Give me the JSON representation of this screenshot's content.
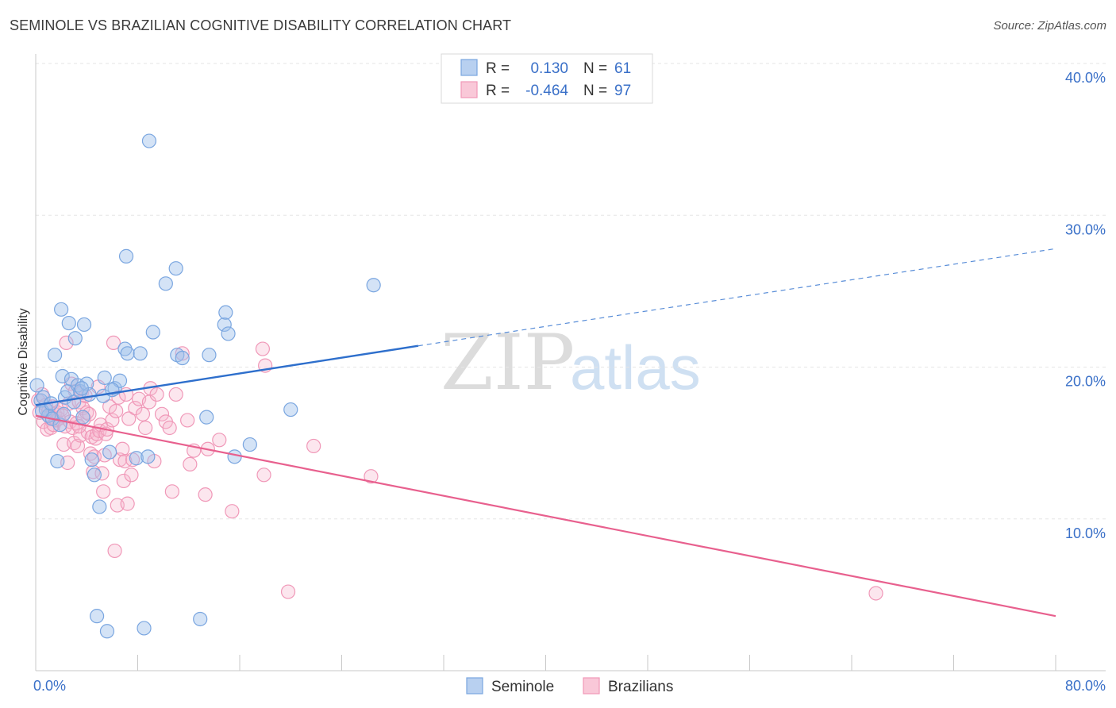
{
  "title": "SEMINOLE VS BRAZILIAN COGNITIVE DISABILITY CORRELATION CHART",
  "source": "Source: ZipAtlas.com",
  "watermark": {
    "zip": "ZIP",
    "atlas": "atlas"
  },
  "colors": {
    "seminole": "#7aa6e0",
    "brazilians": "#f098b8",
    "seminole_line": "#2e6fcc",
    "brazilians_line": "#e8608e",
    "tick": "#3a70c8"
  },
  "legend": {
    "rows": [
      {
        "r_label": "R =",
        "r_value": "0.130",
        "n_label": "N =",
        "n_value": "61"
      },
      {
        "r_label": "R =",
        "r_value": "-0.464",
        "n_label": "N =",
        "n_value": "97"
      }
    ]
  },
  "bottom_legend": [
    "Seminole",
    "Brazilians"
  ],
  "chart_data": {
    "type": "scatter",
    "title": "SEMINOLE VS BRAZILIAN COGNITIVE DISABILITY CORRELATION CHART",
    "xlabel": "",
    "ylabel": "Cognitive Disability",
    "xlim": [
      0,
      80
    ],
    "ylim": [
      0,
      40
    ],
    "x_tick_labels": [
      "0.0%",
      "80.0%"
    ],
    "y_tick_labels": [
      "10.0%",
      "20.0%",
      "30.0%",
      "40.0%"
    ],
    "y_ticks": [
      10,
      20,
      30,
      40
    ],
    "grid": true,
    "series": [
      {
        "name": "Seminole",
        "trend": {
          "x": [
            0,
            30
          ],
          "y": [
            17.5,
            21.4
          ],
          "dashed_to": [
            80,
            27.8
          ]
        },
        "points": [
          [
            0.1,
            18.8
          ],
          [
            0.4,
            17.8
          ],
          [
            0.6,
            18.0
          ],
          [
            0.8,
            17.2
          ],
          [
            1.0,
            16.8
          ],
          [
            1.3,
            16.6
          ],
          [
            1.5,
            20.8
          ],
          [
            1.7,
            13.8
          ],
          [
            1.9,
            16.2
          ],
          [
            2.0,
            23.8
          ],
          [
            2.1,
            19.4
          ],
          [
            2.3,
            18.0
          ],
          [
            2.5,
            18.4
          ],
          [
            2.6,
            22.9
          ],
          [
            2.8,
            19.2
          ],
          [
            3.0,
            17.7
          ],
          [
            3.1,
            21.9
          ],
          [
            3.3,
            18.8
          ],
          [
            3.5,
            18.4
          ],
          [
            3.7,
            16.7
          ],
          [
            3.8,
            22.8
          ],
          [
            4.0,
            18.9
          ],
          [
            4.2,
            18.2
          ],
          [
            4.4,
            13.9
          ],
          [
            4.6,
            12.9
          ],
          [
            4.8,
            3.6
          ],
          [
            5.0,
            10.8
          ],
          [
            5.3,
            18.1
          ],
          [
            5.4,
            19.3
          ],
          [
            5.6,
            2.6
          ],
          [
            5.8,
            14.4
          ],
          [
            6.2,
            18.6
          ],
          [
            6.6,
            19.1
          ],
          [
            7.0,
            21.2
          ],
          [
            7.1,
            27.3
          ],
          [
            7.2,
            20.9
          ],
          [
            7.9,
            14.0
          ],
          [
            8.2,
            20.9
          ],
          [
            8.5,
            2.8
          ],
          [
            8.8,
            14.1
          ],
          [
            8.9,
            34.9
          ],
          [
            9.2,
            22.3
          ],
          [
            10.2,
            25.5
          ],
          [
            11.0,
            26.5
          ],
          [
            11.1,
            20.8
          ],
          [
            11.5,
            20.6
          ],
          [
            12.9,
            3.4
          ],
          [
            13.4,
            16.7
          ],
          [
            13.6,
            20.8
          ],
          [
            14.8,
            22.8
          ],
          [
            14.9,
            23.6
          ],
          [
            15.1,
            22.2
          ],
          [
            15.6,
            14.1
          ],
          [
            16.8,
            14.9
          ],
          [
            20.0,
            17.2
          ],
          [
            26.5,
            25.4
          ],
          [
            0.5,
            17.1
          ],
          [
            1.2,
            17.6
          ],
          [
            2.2,
            16.9
          ],
          [
            3.6,
            18.6
          ],
          [
            6.0,
            18.5
          ]
        ]
      },
      {
        "name": "Brazilians",
        "trend": {
          "x": [
            0,
            80
          ],
          "y": [
            16.8,
            3.6
          ]
        },
        "points": [
          [
            0.2,
            17.8
          ],
          [
            0.3,
            17.0
          ],
          [
            0.5,
            18.2
          ],
          [
            0.6,
            16.4
          ],
          [
            0.8,
            17.5
          ],
          [
            0.9,
            15.9
          ],
          [
            1.0,
            17.1
          ],
          [
            1.1,
            16.7
          ],
          [
            1.2,
            16.0
          ],
          [
            1.3,
            17.4
          ],
          [
            1.4,
            16.2
          ],
          [
            1.5,
            16.9
          ],
          [
            1.6,
            16.5
          ],
          [
            1.7,
            17.0
          ],
          [
            1.8,
            16.6
          ],
          [
            2.0,
            17.2
          ],
          [
            2.1,
            16.8
          ],
          [
            2.2,
            14.9
          ],
          [
            2.3,
            16.1
          ],
          [
            2.4,
            21.6
          ],
          [
            2.5,
            13.7
          ],
          [
            2.6,
            17.6
          ],
          [
            2.7,
            16.4
          ],
          [
            2.8,
            18.9
          ],
          [
            2.9,
            16.0
          ],
          [
            3.0,
            15.0
          ],
          [
            3.1,
            18.4
          ],
          [
            3.2,
            16.3
          ],
          [
            3.3,
            14.8
          ],
          [
            3.4,
            17.7
          ],
          [
            3.5,
            15.5
          ],
          [
            3.6,
            18.3
          ],
          [
            3.7,
            17.3
          ],
          [
            3.8,
            16.6
          ],
          [
            3.9,
            18.1
          ],
          [
            4.0,
            17.0
          ],
          [
            4.1,
            15.7
          ],
          [
            4.2,
            16.9
          ],
          [
            4.3,
            14.3
          ],
          [
            4.4,
            15.4
          ],
          [
            4.5,
            13.1
          ],
          [
            4.6,
            14.1
          ],
          [
            4.7,
            15.3
          ],
          [
            4.8,
            15.6
          ],
          [
            4.9,
            18.7
          ],
          [
            5.0,
            15.8
          ],
          [
            5.1,
            16.2
          ],
          [
            5.2,
            13.0
          ],
          [
            5.3,
            11.8
          ],
          [
            5.4,
            14.2
          ],
          [
            5.5,
            15.6
          ],
          [
            5.6,
            15.9
          ],
          [
            5.8,
            17.4
          ],
          [
            6.0,
            16.5
          ],
          [
            6.1,
            21.6
          ],
          [
            6.2,
            7.9
          ],
          [
            6.3,
            17.1
          ],
          [
            6.4,
            10.9
          ],
          [
            6.5,
            18.0
          ],
          [
            6.6,
            13.9
          ],
          [
            6.8,
            14.6
          ],
          [
            6.9,
            12.5
          ],
          [
            7.0,
            13.8
          ],
          [
            7.1,
            18.2
          ],
          [
            7.2,
            11.0
          ],
          [
            7.3,
            16.6
          ],
          [
            7.5,
            12.9
          ],
          [
            7.6,
            13.9
          ],
          [
            7.8,
            17.3
          ],
          [
            8.1,
            17.9
          ],
          [
            8.4,
            16.9
          ],
          [
            8.6,
            16.0
          ],
          [
            8.9,
            17.7
          ],
          [
            9.0,
            18.6
          ],
          [
            9.3,
            13.8
          ],
          [
            9.5,
            18.2
          ],
          [
            9.9,
            16.9
          ],
          [
            10.2,
            16.4
          ],
          [
            10.5,
            16.0
          ],
          [
            10.7,
            11.8
          ],
          [
            11.0,
            18.2
          ],
          [
            11.5,
            20.9
          ],
          [
            11.9,
            16.5
          ],
          [
            12.1,
            13.6
          ],
          [
            12.4,
            14.5
          ],
          [
            13.3,
            11.6
          ],
          [
            13.5,
            14.6
          ],
          [
            14.4,
            15.2
          ],
          [
            15.4,
            10.5
          ],
          [
            17.9,
            12.9
          ],
          [
            17.8,
            21.2
          ],
          [
            18.0,
            20.1
          ],
          [
            19.8,
            5.2
          ],
          [
            21.8,
            14.8
          ],
          [
            26.3,
            12.8
          ],
          [
            65.9,
            5.1
          ],
          [
            3.4,
            16.1
          ]
        ]
      }
    ]
  }
}
